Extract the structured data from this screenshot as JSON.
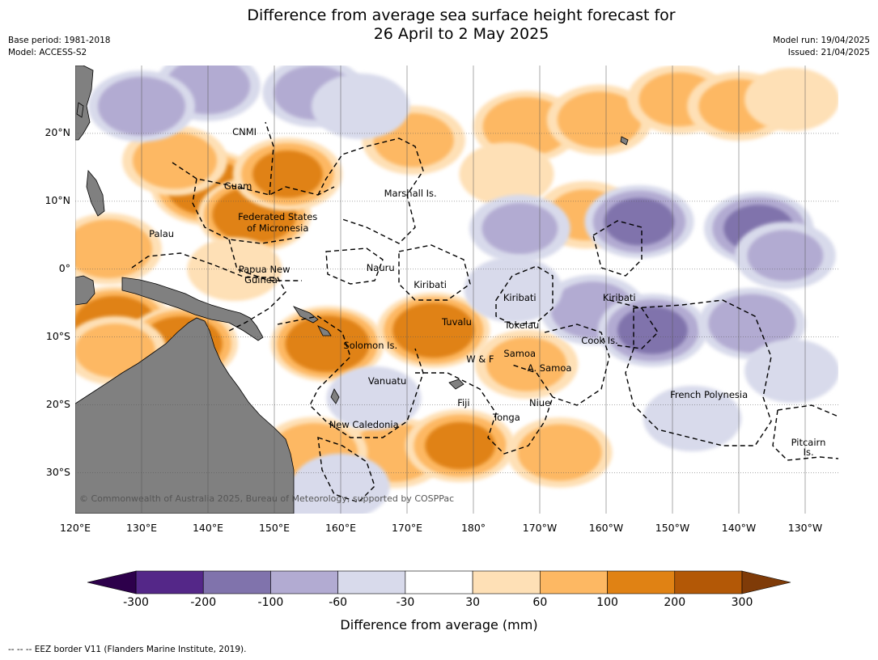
{
  "title_line1": "Difference from average sea surface height forecast for",
  "title_line2": "26 April to 2 May 2025",
  "meta_left": {
    "base_period": "Base period: 1981-2018",
    "model": "Model: ACCESS-S2"
  },
  "meta_right": {
    "model_run": "Model run: 19/04/2025",
    "issued": "Issued: 21/04/2025"
  },
  "map": {
    "lon_range": [
      120,
      235
    ],
    "lat_range": [
      -36,
      30
    ],
    "lat_ticks": [
      {
        "value": 20,
        "label": "20°N"
      },
      {
        "value": 10,
        "label": "10°N"
      },
      {
        "value": 0,
        "label": "0°"
      },
      {
        "value": -10,
        "label": "10°S"
      },
      {
        "value": -20,
        "label": "20°S"
      },
      {
        "value": -30,
        "label": "30°S"
      }
    ],
    "lon_ticks": [
      {
        "value": 120,
        "label": "120°E"
      },
      {
        "value": 130,
        "label": "130°E"
      },
      {
        "value": 140,
        "label": "140°E"
      },
      {
        "value": 150,
        "label": "150°E"
      },
      {
        "value": 160,
        "label": "160°E"
      },
      {
        "value": 170,
        "label": "170°E"
      },
      {
        "value": 180,
        "label": "180°"
      },
      {
        "value": 190,
        "label": "170°W"
      },
      {
        "value": 200,
        "label": "160°W"
      },
      {
        "value": 210,
        "label": "150°W"
      },
      {
        "value": 220,
        "label": "140°W"
      },
      {
        "value": 230,
        "label": "130°W"
      }
    ],
    "places": [
      {
        "name": "CNMI",
        "lon": 145.5,
        "lat": 20.2
      },
      {
        "name": "Guam",
        "lon": 144.5,
        "lat": 12.3
      },
      {
        "name": "Marshall Is.",
        "lon": 170.5,
        "lat": 11.2
      },
      {
        "name": "Federated States",
        "lon": 150.5,
        "lat": 7.7
      },
      {
        "name": "of Micronesia",
        "lon": 150.5,
        "lat": 6.0
      },
      {
        "name": "Palau",
        "lon": 133,
        "lat": 5.2
      },
      {
        "name": "Papua New",
        "lon": 148.5,
        "lat": 0
      },
      {
        "name": "Guinea",
        "lon": 148,
        "lat": -1.6
      },
      {
        "name": "Nauru",
        "lon": 166,
        "lat": 0.2
      },
      {
        "name": "Kiribati",
        "lon": 173.5,
        "lat": -2.3
      },
      {
        "name": "Kiribati",
        "lon": 187,
        "lat": -4.2
      },
      {
        "name": "Kiribati",
        "lon": 202,
        "lat": -4.2
      },
      {
        "name": "Tuvalu",
        "lon": 177.5,
        "lat": -7.8
      },
      {
        "name": "Tokelau",
        "lon": 187.3,
        "lat": -8.2
      },
      {
        "name": "Cook Is.",
        "lon": 199,
        "lat": -10.5
      },
      {
        "name": "Solomon Is.",
        "lon": 164.5,
        "lat": -11.2
      },
      {
        "name": "Samoa",
        "lon": 187,
        "lat": -12.4
      },
      {
        "name": "W & F",
        "lon": 181,
        "lat": -13.2
      },
      {
        "name": "A. Samoa",
        "lon": 191.5,
        "lat": -14.5
      },
      {
        "name": "Vanuatu",
        "lon": 167,
        "lat": -16.5
      },
      {
        "name": "French Polynesia",
        "lon": 215.5,
        "lat": -18.5
      },
      {
        "name": "Fiji",
        "lon": 178.5,
        "lat": -19.7
      },
      {
        "name": "Niue",
        "lon": 190,
        "lat": -19.7
      },
      {
        "name": "Tonga",
        "lon": 185,
        "lat": -21.8
      },
      {
        "name": "New Caledonia",
        "lon": 163.5,
        "lat": -22.9
      },
      {
        "name": "Pitcairn",
        "lon": 230.5,
        "lat": -25.5
      },
      {
        "name": "Is.",
        "lon": 230.5,
        "lat": -27.0
      }
    ],
    "copyright": "© Commonwealth of Australia 2025, Bureau of Meteorology, supported by COSPPac",
    "colors": {
      "land": "#808080",
      "n300": "#2d004b",
      "n200": "#542788",
      "n100": "#8073ac",
      "n60": "#b2abd2",
      "n30": "#d8daeb",
      "zero": "#ffffff",
      "p30": "#fee0b6",
      "p60": "#fdb863",
      "p100": "#e08214",
      "p200": "#b35806",
      "p300": "#7f3b08"
    },
    "anomaly_blobs": [
      {
        "lon": 140,
        "lat": 12,
        "value": 150
      },
      {
        "lon": 147,
        "lat": 8,
        "value": 160
      },
      {
        "lon": 135,
        "lat": 16,
        "value": 80
      },
      {
        "lon": 152,
        "lat": 14,
        "value": 110
      },
      {
        "lon": 125,
        "lat": 3,
        "value": 90
      },
      {
        "lon": 126,
        "lat": -8,
        "value": 150
      },
      {
        "lon": 136,
        "lat": -11,
        "value": 150
      },
      {
        "lon": 126,
        "lat": -12,
        "value": 70
      },
      {
        "lon": 158,
        "lat": -11,
        "value": 160
      },
      {
        "lon": 174,
        "lat": -9,
        "value": 150
      },
      {
        "lon": 168,
        "lat": -27,
        "value": 90
      },
      {
        "lon": 178,
        "lat": -26,
        "value": 110
      },
      {
        "lon": 188,
        "lat": -14,
        "value": 70
      },
      {
        "lon": 193,
        "lat": -27,
        "value": 80
      },
      {
        "lon": 156,
        "lat": -27,
        "value": 90
      },
      {
        "lon": 171,
        "lat": 19,
        "value": 70
      },
      {
        "lon": 188,
        "lat": 21,
        "value": 90
      },
      {
        "lon": 185,
        "lat": 14,
        "value": 40
      },
      {
        "lon": 199,
        "lat": 22,
        "value": 80
      },
      {
        "lon": 211,
        "lat": 25,
        "value": 70
      },
      {
        "lon": 220,
        "lat": 24,
        "value": 70
      },
      {
        "lon": 228,
        "lat": 25,
        "value": 40
      },
      {
        "lon": 197,
        "lat": 8,
        "value": 60
      },
      {
        "lon": 144,
        "lat": 0,
        "value": 40
      },
      {
        "lon": 140,
        "lat": 27,
        "value": -80
      },
      {
        "lon": 130,
        "lat": 24,
        "value": -90
      },
      {
        "lon": 156,
        "lat": 26,
        "value": -70
      },
      {
        "lon": 163,
        "lat": 24,
        "value": -50
      },
      {
        "lon": 205,
        "lat": 7,
        "value": -110
      },
      {
        "lon": 223,
        "lat": 6,
        "value": -110
      },
      {
        "lon": 187,
        "lat": 6,
        "value": -60
      },
      {
        "lon": 198,
        "lat": -6,
        "value": -80
      },
      {
        "lon": 207,
        "lat": -9,
        "value": -110
      },
      {
        "lon": 222,
        "lat": -8,
        "value": -90
      },
      {
        "lon": 186,
        "lat": -3,
        "value": -50
      },
      {
        "lon": 213,
        "lat": -22,
        "value": -50
      },
      {
        "lon": 228,
        "lat": -15,
        "value": -40
      },
      {
        "lon": 227,
        "lat": 2,
        "value": -60
      },
      {
        "lon": 165,
        "lat": -19,
        "value": -40
      },
      {
        "lon": 160,
        "lat": -32,
        "value": -50
      },
      {
        "lon": 150,
        "lat": -35,
        "value": -50
      }
    ]
  },
  "colorbar": {
    "label": "Difference from average (mm)",
    "ticks": [
      "-300",
      "-200",
      "-100",
      "-60",
      "-30",
      "30",
      "60",
      "100",
      "200",
      "300"
    ],
    "bins": [
      "#542788",
      "#8073ac",
      "#b2abd2",
      "#d8daeb",
      "#ffffff",
      "#fee0b6",
      "#fdb863",
      "#e08214",
      "#b35806"
    ],
    "extend_low": "#2d004b",
    "extend_high": "#7f3b08"
  },
  "footnote": "-- -- -- EEZ border V11 (Flanders Marine Institute, 2019)."
}
